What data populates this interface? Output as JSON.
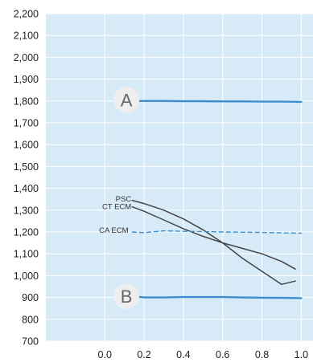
{
  "chart_data": {
    "type": "line",
    "title": "",
    "xlabel": "",
    "ylabel": "",
    "xlim": [
      -0.3,
      1.06
    ],
    "ylim": [
      700,
      2200
    ],
    "x_ticks": [
      0.0,
      0.2,
      0.4,
      0.6,
      0.8,
      1.0
    ],
    "x_tick_labels": [
      "0.0",
      "0.2",
      "0.4",
      "0.6",
      "0.8",
      "1.0"
    ],
    "y_ticks": [
      700,
      800,
      900,
      1000,
      1100,
      1200,
      1300,
      1400,
      1500,
      1600,
      1700,
      1800,
      1900,
      2000,
      2100,
      2200
    ],
    "y_tick_labels": [
      "700",
      "800",
      "900",
      "1,000",
      "1,100",
      "1,200",
      "1,300",
      "1,400",
      "1,500",
      "1,600",
      "1,700",
      "1,800",
      "1,900",
      "2,000",
      "2,100",
      "2,200"
    ],
    "grid": true,
    "legend": "none",
    "colors": {
      "plot_background": "#d6ebf7",
      "gridline": "#ffffff",
      "curve_blue": "#3b8fd0",
      "curve_dark": "#444444",
      "ca_label": "#2f9ad6",
      "marker_circle": "#eeeeee"
    },
    "series": [
      {
        "name": "",
        "style": "solid",
        "color": "#3b8fd0",
        "x": [
          0.1,
          0.15,
          0.2,
          0.3,
          0.4,
          0.5,
          0.6,
          0.7,
          0.8,
          0.9,
          1.0
        ],
        "y": [
          1805,
          1800,
          1800,
          1800,
          1799,
          1799,
          1798,
          1798,
          1797,
          1797,
          1796
        ]
      },
      {
        "name": "PSC",
        "style": "solid",
        "color": "#444444",
        "x": [
          0.14,
          0.2,
          0.3,
          0.4,
          0.5,
          0.6,
          0.7,
          0.8,
          0.9,
          0.97
        ],
        "y": [
          1345,
          1330,
          1300,
          1260,
          1210,
          1150,
          1080,
          1020,
          960,
          975
        ]
      },
      {
        "name": "CT ECM",
        "style": "solid",
        "color": "#444444",
        "x": [
          0.14,
          0.2,
          0.3,
          0.4,
          0.5,
          0.6,
          0.7,
          0.8,
          0.9,
          0.97
        ],
        "y": [
          1315,
          1295,
          1255,
          1215,
          1180,
          1150,
          1125,
          1100,
          1065,
          1030
        ]
      },
      {
        "name": "CA ECM",
        "style": "dashed",
        "color": "#3b8fd0",
        "x": [
          0.14,
          0.2,
          0.3,
          0.4,
          0.5,
          0.6,
          0.7,
          0.8,
          0.9,
          1.0
        ],
        "y": [
          1200,
          1197,
          1205,
          1203,
          1202,
          1200,
          1199,
          1198,
          1196,
          1195
        ]
      },
      {
        "name": "",
        "style": "solid",
        "color": "#3b8fd0",
        "x": [
          0.1,
          0.15,
          0.2,
          0.3,
          0.4,
          0.5,
          0.6,
          0.7,
          0.8,
          0.9,
          1.0
        ],
        "y": [
          912,
          905,
          900,
          900,
          902,
          902,
          902,
          900,
          899,
          898,
          897
        ]
      }
    ],
    "annotations": [
      {
        "text": "PSC",
        "x": 0.135,
        "y": 1352,
        "color": "#333333"
      },
      {
        "text": "CT ECM",
        "x": 0.135,
        "y": 1318,
        "color": "#333333"
      },
      {
        "text": "CA ECM",
        "x": 0.12,
        "y": 1210,
        "color": "#2f9ad6"
      }
    ],
    "markers": [
      {
        "label": "A",
        "x": 0.11,
        "y": 1805
      },
      {
        "label": "B",
        "x": 0.11,
        "y": 905
      }
    ]
  }
}
